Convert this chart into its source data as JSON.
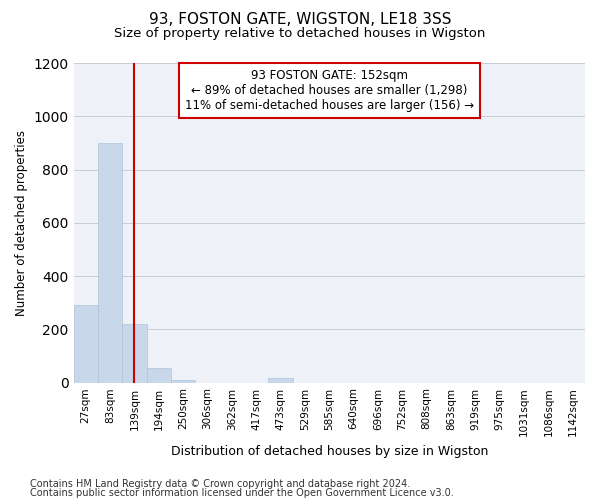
{
  "title": "93, FOSTON GATE, WIGSTON, LE18 3SS",
  "subtitle": "Size of property relative to detached houses in Wigston",
  "xlabel": "Distribution of detached houses by size in Wigston",
  "ylabel": "Number of detached properties",
  "footnote1": "Contains HM Land Registry data © Crown copyright and database right 2024.",
  "footnote2": "Contains public sector information licensed under the Open Government Licence v3.0.",
  "annotation_title": "93 FOSTON GATE: 152sqm",
  "annotation_line1": "← 89% of detached houses are smaller (1,298)",
  "annotation_line2": "11% of semi-detached houses are larger (156) →",
  "bar_color": "#c8d8ea",
  "bar_edge_color": "#b0c4d8",
  "vline_color": "#cc0000",
  "annotation_box_color": "#ffffff",
  "annotation_box_edge": "#cc0000",
  "categories": [
    "27sqm",
    "83sqm",
    "139sqm",
    "194sqm",
    "250sqm",
    "306sqm",
    "362sqm",
    "417sqm",
    "473sqm",
    "529sqm",
    "585sqm",
    "640sqm",
    "696sqm",
    "752sqm",
    "808sqm",
    "863sqm",
    "919sqm",
    "975sqm",
    "1031sqm",
    "1086sqm",
    "1142sqm"
  ],
  "values": [
    290,
    900,
    220,
    55,
    10,
    0,
    0,
    0,
    18,
    0,
    0,
    0,
    0,
    0,
    0,
    0,
    0,
    0,
    0,
    0,
    0
  ],
  "ylim": [
    0,
    1200
  ],
  "yticks": [
    0,
    200,
    400,
    600,
    800,
    1000,
    1200
  ],
  "vline_x": 2.0,
  "background_color": "#eef2f8",
  "grid_color": "#c8ccd4",
  "title_fontsize": 11,
  "subtitle_fontsize": 9.5,
  "ylabel_fontsize": 8.5,
  "xlabel_fontsize": 9,
  "tick_fontsize": 7.5,
  "annotation_fontsize": 8.5,
  "footnote_fontsize": 7
}
